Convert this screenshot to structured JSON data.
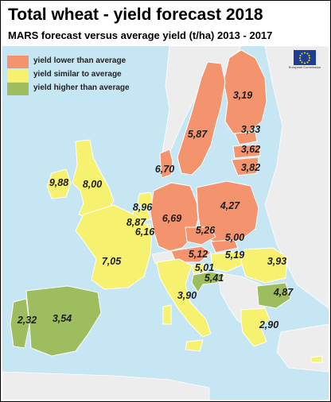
{
  "title": "Total wheat - yield forecast 2018",
  "subtitle": "MARS forecast versus average yield (t/ha) 2013 - 2017",
  "colors": {
    "lower": "#f4946e",
    "similar": "#f6f16f",
    "higher": "#9ebd5e",
    "sea": "#c6e6f4",
    "land": "#ededed",
    "border": "#ffffff"
  },
  "legend": [
    {
      "label": "yield lower than average",
      "category": "lower"
    },
    {
      "label": "yield similar to average",
      "category": "similar"
    },
    {
      "label": "yield higher than average",
      "category": "higher"
    }
  ],
  "logo": {
    "icon": "eu-flag-icon",
    "text": "European Commission"
  },
  "yield_labels": [
    {
      "value": "9,88",
      "category": "similar"
    },
    {
      "value": "8,00",
      "category": "similar"
    },
    {
      "value": "3,19",
      "category": "lower"
    },
    {
      "value": "5,87",
      "category": "lower"
    },
    {
      "value": "3,33",
      "category": "lower"
    },
    {
      "value": "3,62",
      "category": "lower"
    },
    {
      "value": "3,82",
      "category": "lower"
    },
    {
      "value": "6,70",
      "category": "lower"
    },
    {
      "value": "8,96",
      "category": "similar"
    },
    {
      "value": "8,87",
      "category": "similar"
    },
    {
      "value": "6,16",
      "category": "similar"
    },
    {
      "value": "6,69",
      "category": "lower"
    },
    {
      "value": "4,27",
      "category": "lower"
    },
    {
      "value": "5,26",
      "category": "lower"
    },
    {
      "value": "5,00",
      "category": "lower"
    },
    {
      "value": "7,05",
      "category": "similar"
    },
    {
      "value": "5,12",
      "category": "lower"
    },
    {
      "value": "5,19",
      "category": "similar"
    },
    {
      "value": "3,93",
      "category": "similar"
    },
    {
      "value": "5,01",
      "category": "similar"
    },
    {
      "value": "5,41",
      "category": "higher"
    },
    {
      "value": "4,87",
      "category": "higher"
    },
    {
      "value": "3,90",
      "category": "similar"
    },
    {
      "value": "2,32",
      "category": "higher"
    },
    {
      "value": "3,54",
      "category": "higher"
    },
    {
      "value": "2,90",
      "category": "similar"
    }
  ]
}
